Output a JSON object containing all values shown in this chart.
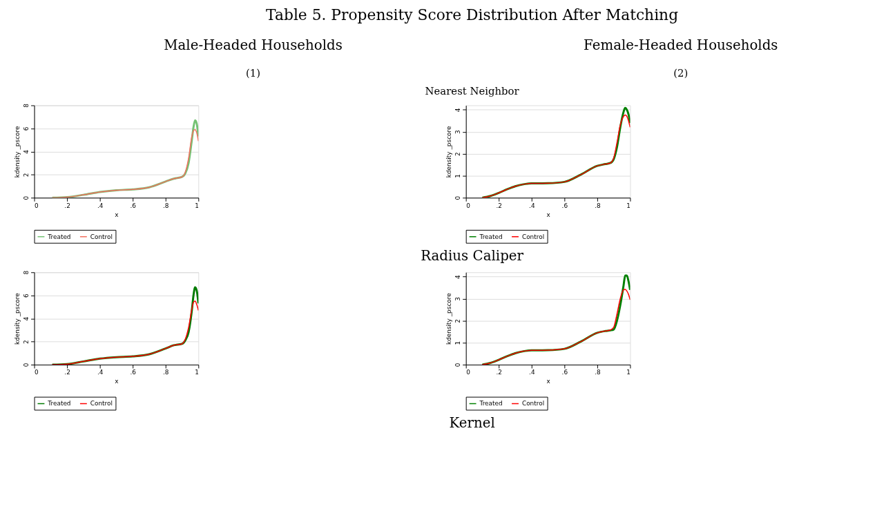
{
  "chart_data": [
    {
      "type": "line",
      "annotations": [
        "Table 5. Propensity Score Distribution After Matching",
        "Male-Headed Households",
        "(1)",
        "Nearest Neighbor"
      ],
      "xlabel": "x",
      "ylabel": "kdensity _pscore",
      "x": [
        0.11,
        0.2,
        0.3,
        0.4,
        0.5,
        0.6,
        0.7,
        0.8,
        0.85,
        0.9,
        0.92,
        0.94,
        0.96,
        0.97,
        0.98,
        0.99,
        1.0
      ],
      "series": [
        {
          "name": "Treated",
          "color": "#74c274",
          "values": [
            0.0,
            0.05,
            0.25,
            0.5,
            0.65,
            0.72,
            0.9,
            1.4,
            1.65,
            1.8,
            2.1,
            3.0,
            5.0,
            6.1,
            6.7,
            6.4,
            5.3
          ]
        },
        {
          "name": "Control",
          "color": "#f2705f",
          "values": [
            0.0,
            0.05,
            0.25,
            0.5,
            0.65,
            0.72,
            0.9,
            1.4,
            1.65,
            1.8,
            2.2,
            3.4,
            5.3,
            5.8,
            5.9,
            5.6,
            4.9
          ]
        }
      ],
      "xlim": [
        0,
        1
      ],
      "xticks": [
        0,
        {
          "value": 0.2,
          "label": ".2"
        },
        {
          "value": 0.4,
          "label": ".4"
        },
        {
          "value": 0.6,
          "label": ".6"
        },
        {
          "value": 0.8,
          "label": ".8"
        },
        1
      ],
      "ylim": [
        0,
        8
      ],
      "yticks": [
        0,
        2,
        4,
        6,
        8
      ],
      "grid": "y",
      "legend": "bottom",
      "marker": "none",
      "line_style": "solid"
    },
    {
      "type": "line",
      "annotations": [
        "Female-Headed Households",
        "(2)"
      ],
      "xlabel": "x",
      "ylabel": "kdensity _pscore",
      "x": [
        0.1,
        0.15,
        0.2,
        0.25,
        0.3,
        0.35,
        0.4,
        0.5,
        0.6,
        0.7,
        0.8,
        0.85,
        0.88,
        0.9,
        0.92,
        0.94,
        0.96,
        0.97,
        0.98,
        0.99,
        1.0
      ],
      "series": [
        {
          "name": "Treated",
          "color": "#008000",
          "values": [
            0.0,
            0.08,
            0.22,
            0.38,
            0.52,
            0.61,
            0.65,
            0.66,
            0.72,
            1.05,
            1.45,
            1.53,
            1.58,
            1.75,
            2.3,
            3.2,
            3.9,
            4.08,
            4.0,
            3.8,
            3.4
          ]
        },
        {
          "name": "Control",
          "color": "#ff0000",
          "values": [
            0.0,
            0.08,
            0.22,
            0.38,
            0.52,
            0.61,
            0.65,
            0.66,
            0.72,
            1.05,
            1.45,
            1.53,
            1.58,
            1.8,
            2.5,
            3.3,
            3.7,
            3.76,
            3.7,
            3.5,
            3.2
          ]
        }
      ],
      "xlim": [
        0,
        1
      ],
      "xticks": [
        0,
        {
          "value": 0.2,
          "label": ".2"
        },
        {
          "value": 0.4,
          "label": ".4"
        },
        {
          "value": 0.6,
          "label": ".6"
        },
        {
          "value": 0.8,
          "label": ".8"
        },
        1
      ],
      "ylim": [
        0,
        4.2
      ],
      "yticks": [
        0,
        1,
        2,
        3,
        4
      ],
      "grid": "y",
      "legend": "bottom",
      "marker": "none",
      "line_style": "solid"
    },
    {
      "type": "line",
      "annotations": [
        "Radius Caliper"
      ],
      "xlabel": "x",
      "ylabel": "kdensity _pscore",
      "x": [
        0.11,
        0.2,
        0.3,
        0.4,
        0.5,
        0.6,
        0.7,
        0.8,
        0.85,
        0.9,
        0.92,
        0.94,
        0.96,
        0.97,
        0.98,
        0.99,
        1.0
      ],
      "series": [
        {
          "name": "Treated",
          "color": "#007a00",
          "values": [
            0.0,
            0.05,
            0.28,
            0.52,
            0.65,
            0.72,
            0.9,
            1.4,
            1.68,
            1.8,
            2.1,
            2.8,
            4.7,
            6.0,
            6.7,
            6.4,
            5.3
          ]
        },
        {
          "name": "Control",
          "color": "#ff0000",
          "values": [
            0.0,
            0.05,
            0.28,
            0.52,
            0.65,
            0.72,
            0.9,
            1.4,
            1.68,
            1.8,
            2.2,
            3.2,
            4.8,
            5.4,
            5.5,
            5.2,
            4.7
          ]
        }
      ],
      "xlim": [
        0,
        1
      ],
      "xticks": [
        0,
        {
          "value": 0.2,
          "label": ".2"
        },
        {
          "value": 0.4,
          "label": ".4"
        },
        {
          "value": 0.6,
          "label": ".6"
        },
        {
          "value": 0.8,
          "label": ".8"
        },
        1
      ],
      "ylim": [
        0,
        8
      ],
      "yticks": [
        0,
        2,
        4,
        6,
        8
      ],
      "grid": "y",
      "legend": "bottom",
      "marker": "none",
      "line_style": "solid"
    },
    {
      "type": "line",
      "annotations": [
        "Kernel"
      ],
      "xlabel": "x",
      "ylabel": "kdensity _pscore",
      "x": [
        0.1,
        0.15,
        0.2,
        0.25,
        0.3,
        0.35,
        0.4,
        0.5,
        0.6,
        0.7,
        0.8,
        0.85,
        0.88,
        0.9,
        0.92,
        0.94,
        0.96,
        0.97,
        0.98,
        0.99,
        1.0
      ],
      "series": [
        {
          "name": "Treated",
          "color": "#008000",
          "values": [
            0.0,
            0.08,
            0.22,
            0.38,
            0.52,
            0.61,
            0.65,
            0.66,
            0.72,
            1.05,
            1.45,
            1.53,
            1.56,
            1.6,
            2.0,
            2.7,
            3.6,
            4.05,
            4.05,
            3.8,
            3.4
          ]
        },
        {
          "name": "Control",
          "color": "#ff0000",
          "values": [
            0.0,
            0.08,
            0.22,
            0.38,
            0.52,
            0.61,
            0.65,
            0.66,
            0.72,
            1.05,
            1.45,
            1.53,
            1.58,
            1.7,
            2.3,
            3.0,
            3.4,
            3.42,
            3.35,
            3.2,
            2.95
          ]
        }
      ],
      "xlim": [
        0,
        1
      ],
      "xticks": [
        0,
        {
          "value": 0.2,
          "label": ".2"
        },
        {
          "value": 0.4,
          "label": ".4"
        },
        {
          "value": 0.6,
          "label": ".6"
        },
        {
          "value": 0.8,
          "label": ".8"
        },
        1
      ],
      "ylim": [
        0,
        4.2
      ],
      "yticks": [
        0,
        1,
        2,
        3,
        4
      ],
      "grid": "y",
      "legend": "bottom",
      "marker": "none",
      "line_style": "solid"
    }
  ]
}
